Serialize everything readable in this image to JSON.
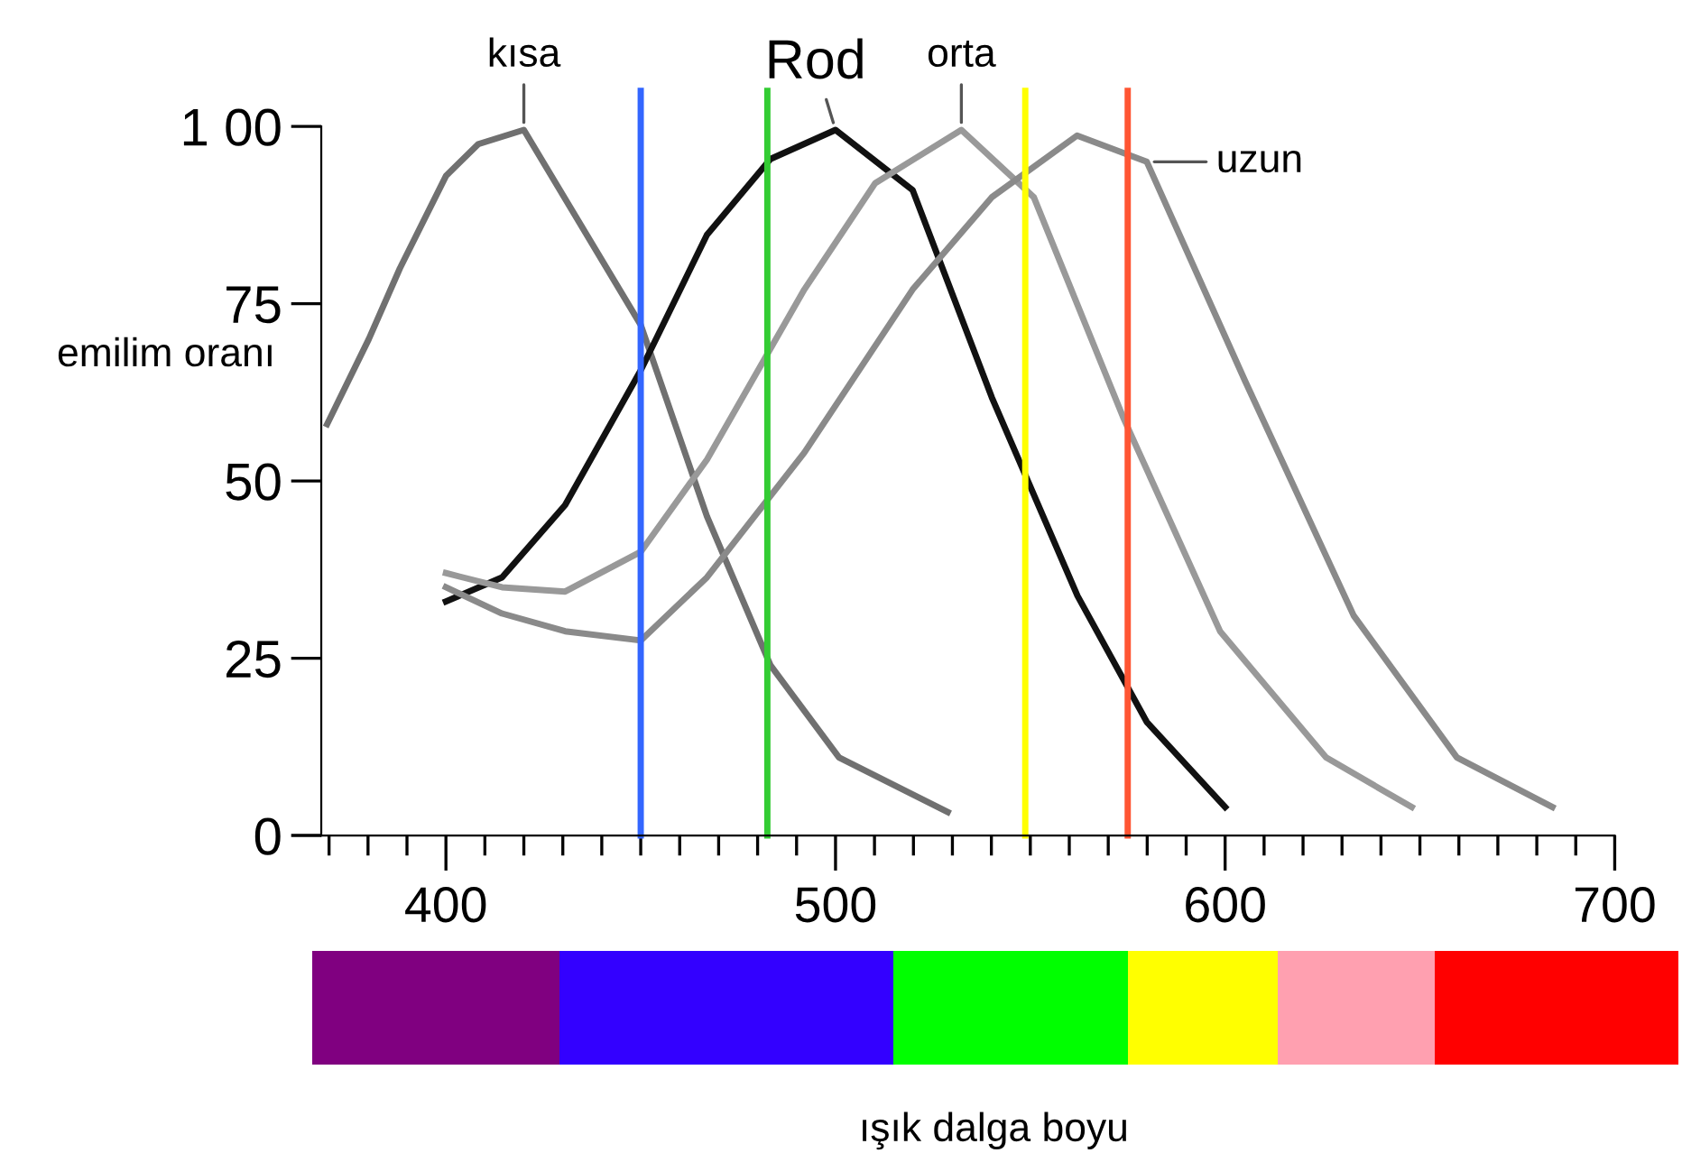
{
  "chart_data": {
    "type": "line",
    "xlabel": "ışık dalga boyu",
    "ylabel": "emilim oranı",
    "xlim": [
      368,
      700
    ],
    "ylim": [
      0,
      100
    ],
    "xticks": [
      {
        "value": 370,
        "label": null
      },
      {
        "value": 380,
        "label": null
      },
      {
        "value": 390,
        "label": null
      },
      400,
      {
        "value": 410,
        "label": null
      },
      {
        "value": 420,
        "label": null
      },
      {
        "value": 430,
        "label": null
      },
      {
        "value": 440,
        "label": null
      },
      {
        "value": 450,
        "label": null
      },
      {
        "value": 460,
        "label": null
      },
      {
        "value": 470,
        "label": null
      },
      {
        "value": 480,
        "label": null
      },
      {
        "value": 490,
        "label": null
      },
      500,
      {
        "value": 510,
        "label": null
      },
      {
        "value": 520,
        "label": null
      },
      {
        "value": 530,
        "label": null
      },
      {
        "value": 540,
        "label": null
      },
      {
        "value": 550,
        "label": null
      },
      {
        "value": 560,
        "label": null
      },
      {
        "value": 570,
        "label": null
      },
      {
        "value": 580,
        "label": null
      },
      {
        "value": 590,
        "label": null
      },
      600,
      {
        "value": 610,
        "label": null
      },
      {
        "value": 620,
        "label": null
      },
      {
        "value": 630,
        "label": null
      },
      {
        "value": 640,
        "label": null
      },
      {
        "value": 650,
        "label": null
      },
      {
        "value": 660,
        "label": null
      },
      {
        "value": 670,
        "label": null
      },
      {
        "value": 680,
        "label": null
      },
      {
        "value": 690,
        "label": null
      },
      700
    ],
    "yticks": [
      0,
      25,
      50,
      75,
      {
        "value": 100,
        "label": "1 00"
      }
    ],
    "grid": false,
    "legend": false,
    "marker": "none",
    "line_style": "solid",
    "series": [
      {
        "color": "#707070",
        "x": [
          369.5,
          380.2,
          388.2,
          400,
          408.3,
          420,
          450,
          467,
          483.3,
          500.9,
          528.8
        ],
        "values": [
          58,
          70,
          80,
          93,
          97.5,
          99.5,
          72,
          45,
          24,
          11,
          3.3
        ]
      },
      {
        "color": "#111111",
        "x": [
          400,
          414.4,
          430.6,
          450,
          467,
          483.3,
          500,
          519.8,
          540.1,
          562.1,
          579.9,
          600
        ],
        "values": [
          33,
          36.4,
          46.6,
          65.6,
          84.7,
          95.4,
          99.5,
          91,
          61.8,
          33.8,
          16,
          4
        ]
      },
      {
        "color": "#999999",
        "x": [
          400,
          414.4,
          430.6,
          450,
          467,
          492,
          510.2,
          532.3,
          550.9,
          573.8,
          598.7,
          625.9,
          647.9
        ],
        "values": [
          37,
          35,
          34.4,
          40,
          53,
          77,
          92,
          99.5,
          90,
          59,
          28.8,
          11,
          4
        ]
      },
      {
        "color": "#8a8a8a",
        "x": [
          400,
          414.4,
          430.6,
          450,
          467,
          492,
          519.8,
          540.1,
          562,
          579.9,
          605.2,
          633,
          659.5,
          684
        ],
        "values": [
          35,
          31.3,
          28.8,
          27.5,
          36.4,
          54,
          77,
          90,
          98.7,
          95,
          64,
          31,
          11,
          4
        ]
      }
    ],
    "ref_lines": [
      {
        "axis": "x",
        "value": 450,
        "color": "#3366ff"
      },
      {
        "axis": "x",
        "value": 482.5,
        "color": "#33cc33"
      },
      {
        "axis": "x",
        "value": 548.7,
        "color": "#ffff00"
      },
      {
        "axis": "x",
        "value": 575,
        "color": "#ff5533"
      }
    ],
    "annotations": [
      {
        "text": "kısa",
        "x": 420,
        "y": 99.5
      },
      {
        "text": "Rod",
        "x": 500,
        "y": 99.5
      },
      {
        "text": "orta",
        "x": 532.3,
        "y": 99.5
      },
      {
        "text": "uzun",
        "x": 579.9,
        "y": 95
      }
    ]
  }
}
